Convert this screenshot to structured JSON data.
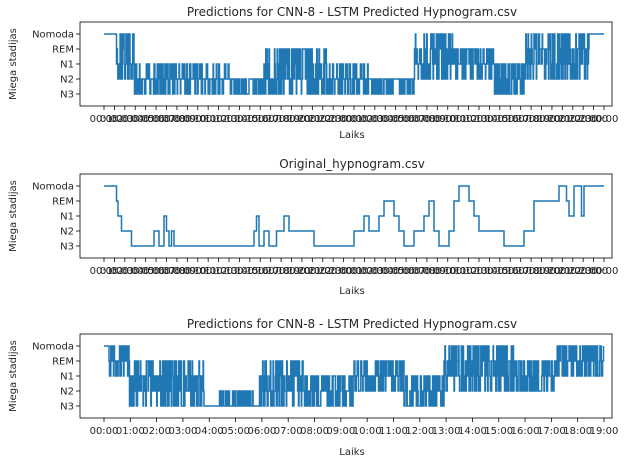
{
  "chart_data": [
    {
      "type": "line",
      "title": "Predictions for CNN-8 - LSTM Predicted Hypnogram.csv",
      "xlabel": "Laiks",
      "ylabel": "Miega stadijas",
      "y_categories": [
        "N3",
        "N2",
        "N1",
        "REM",
        "Nomoda"
      ],
      "x_ticks": [
        "00:00",
        "01:00",
        "02:00",
        "03:00",
        "04:00",
        "05:00",
        "06:00",
        "07:00",
        "08:00",
        "09:00",
        "10:00",
        "11:00",
        "12:00",
        "13:00",
        "14:00",
        "15:00",
        "16:00",
        "17:00",
        "18:00",
        "19:00",
        "20:00",
        "21:00",
        "22:00",
        "23:00",
        "00:00",
        "01:00",
        "02:00",
        "03:00",
        "04:00",
        "05:00",
        "06:00",
        "07:00",
        "08:00",
        "09:00",
        "10:00",
        "11:00",
        "12:00",
        "13:00",
        "14:00",
        "15:00",
        "16:00",
        "17:00",
        "18:00",
        "19:00",
        "20:00",
        "21:00",
        "22:00",
        "23:00",
        "00:00"
      ],
      "x_ticks_overlap": true,
      "grid": false,
      "color": "#1f77b4",
      "segments": [
        {
          "from": 0,
          "to": 0.025,
          "stage": "Nomoda"
        },
        {
          "from": 0.025,
          "to": 0.06,
          "noisy": [
            "Nomoda",
            "REM",
            "N1",
            "N2"
          ]
        },
        {
          "from": 0.06,
          "to": 0.25,
          "noisy": [
            "N2",
            "N3",
            "N2",
            "N1"
          ]
        },
        {
          "from": 0.25,
          "to": 0.32,
          "noisy": [
            "N3",
            "N2"
          ]
        },
        {
          "from": 0.32,
          "to": 0.45,
          "noisy": [
            "REM",
            "N1",
            "N2",
            "N3"
          ]
        },
        {
          "from": 0.45,
          "to": 0.53,
          "noisy": [
            "N2",
            "N3",
            "N1"
          ]
        },
        {
          "from": 0.53,
          "to": 0.62,
          "noisy": [
            "N2",
            "N3"
          ]
        },
        {
          "from": 0.62,
          "to": 0.7,
          "noisy": [
            "REM",
            "N1",
            "N2",
            "Nomoda"
          ]
        },
        {
          "from": 0.7,
          "to": 0.78,
          "noisy": [
            "N1",
            "N2",
            "REM"
          ]
        },
        {
          "from": 0.78,
          "to": 0.84,
          "noisy": [
            "N2",
            "N3",
            "N1"
          ]
        },
        {
          "from": 0.84,
          "to": 0.97,
          "noisy": [
            "REM",
            "N1",
            "Nomoda",
            "N2"
          ]
        },
        {
          "from": 0.97,
          "to": 1.0,
          "stage": "Nomoda"
        }
      ]
    },
    {
      "type": "line",
      "title": "Original_hypnogram.csv",
      "xlabel": "Laiks",
      "ylabel": "Miega stadijas",
      "y_categories": [
        "N3",
        "N2",
        "N1",
        "REM",
        "Nomoda"
      ],
      "x_ticks": [
        "00:00",
        "01:00",
        "02:00",
        "03:00",
        "04:00",
        "05:00",
        "06:00",
        "07:00",
        "08:00",
        "09:00",
        "10:00",
        "11:00",
        "12:00",
        "13:00",
        "14:00",
        "15:00",
        "16:00",
        "17:00",
        "18:00",
        "19:00",
        "20:00",
        "21:00",
        "22:00",
        "23:00",
        "00:00",
        "01:00",
        "02:00",
        "03:00",
        "04:00",
        "05:00",
        "06:00",
        "07:00",
        "08:00",
        "09:00",
        "10:00",
        "11:00",
        "12:00",
        "13:00",
        "14:00",
        "15:00",
        "16:00",
        "17:00",
        "18:00",
        "19:00",
        "20:00",
        "21:00",
        "22:00",
        "23:00",
        "00:00"
      ],
      "x_ticks_overlap": true,
      "grid": false,
      "color": "#1f77b4",
      "steps": [
        [
          0.0,
          "Nomoda"
        ],
        [
          0.025,
          "REM"
        ],
        [
          0.028,
          "N1"
        ],
        [
          0.035,
          "N2"
        ],
        [
          0.045,
          "N2"
        ],
        [
          0.055,
          "N3"
        ],
        [
          0.1,
          "N2"
        ],
        [
          0.11,
          "N3"
        ],
        [
          0.12,
          "N1"
        ],
        [
          0.125,
          "N2"
        ],
        [
          0.13,
          "N3"
        ],
        [
          0.135,
          "N2"
        ],
        [
          0.14,
          "N3"
        ],
        [
          0.3,
          "N2"
        ],
        [
          0.305,
          "N1"
        ],
        [
          0.31,
          "N3"
        ],
        [
          0.32,
          "N2"
        ],
        [
          0.33,
          "N3"
        ],
        [
          0.345,
          "N2"
        ],
        [
          0.36,
          "N1"
        ],
        [
          0.37,
          "N2"
        ],
        [
          0.4,
          "N2"
        ],
        [
          0.42,
          "N3"
        ],
        [
          0.5,
          "N2"
        ],
        [
          0.52,
          "N1"
        ],
        [
          0.53,
          "N2"
        ],
        [
          0.55,
          "N1"
        ],
        [
          0.56,
          "REM"
        ],
        [
          0.58,
          "N1"
        ],
        [
          0.59,
          "N2"
        ],
        [
          0.6,
          "N3"
        ],
        [
          0.62,
          "N2"
        ],
        [
          0.64,
          "N1"
        ],
        [
          0.65,
          "REM"
        ],
        [
          0.66,
          "N2"
        ],
        [
          0.67,
          "N3"
        ],
        [
          0.69,
          "N2"
        ],
        [
          0.7,
          "REM"
        ],
        [
          0.71,
          "Nomoda"
        ],
        [
          0.73,
          "REM"
        ],
        [
          0.74,
          "N1"
        ],
        [
          0.75,
          "N2"
        ],
        [
          0.8,
          "N3"
        ],
        [
          0.84,
          "N2"
        ],
        [
          0.86,
          "REM"
        ],
        [
          0.9,
          "REM"
        ],
        [
          0.91,
          "Nomoda"
        ],
        [
          0.925,
          "REM"
        ],
        [
          0.93,
          "N1"
        ],
        [
          0.94,
          "Nomoda"
        ],
        [
          0.955,
          "N1"
        ],
        [
          0.96,
          "Nomoda"
        ],
        [
          1.0,
          "Nomoda"
        ]
      ]
    },
    {
      "type": "line",
      "title": "Predictions for CNN-8 - LSTM Predicted Hypnogram.csv",
      "xlabel": "Laiks",
      "ylabel": "Miega stadijas",
      "y_categories": [
        "N3",
        "N2",
        "N1",
        "REM",
        "Nomoda"
      ],
      "x_ticks": [
        "00:00",
        "01:00",
        "02:00",
        "03:00",
        "04:00",
        "05:00",
        "06:00",
        "07:00",
        "08:00",
        "09:00",
        "10:00",
        "11:00",
        "12:00",
        "13:00",
        "14:00",
        "15:00",
        "16:00",
        "17:00",
        "18:00",
        "19:00"
      ],
      "x_ticks_overlap": false,
      "grid": false,
      "color": "#1f77b4",
      "segments": [
        {
          "from": 0,
          "to": 0.01,
          "stage": "Nomoda"
        },
        {
          "from": 0.01,
          "to": 0.05,
          "noisy": [
            "Nomoda",
            "REM",
            "N1"
          ]
        },
        {
          "from": 0.05,
          "to": 0.2,
          "noisy": [
            "REM",
            "N1",
            "N2",
            "N3"
          ]
        },
        {
          "from": 0.2,
          "to": 0.23,
          "stage": "N3"
        },
        {
          "from": 0.23,
          "to": 0.31,
          "noisy": [
            "N2",
            "N3"
          ]
        },
        {
          "from": 0.31,
          "to": 0.4,
          "noisy": [
            "REM",
            "N1",
            "N2",
            "N3"
          ]
        },
        {
          "from": 0.4,
          "to": 0.5,
          "noisy": [
            "N2",
            "N3",
            "N1"
          ]
        },
        {
          "from": 0.5,
          "to": 0.6,
          "noisy": [
            "REM",
            "N1",
            "N2"
          ]
        },
        {
          "from": 0.6,
          "to": 0.68,
          "noisy": [
            "N2",
            "N3",
            "N1"
          ]
        },
        {
          "from": 0.68,
          "to": 0.82,
          "noisy": [
            "REM",
            "N1",
            "Nomoda",
            "N2"
          ]
        },
        {
          "from": 0.82,
          "to": 0.9,
          "noisy": [
            "N2",
            "N1",
            "REM"
          ]
        },
        {
          "from": 0.9,
          "to": 1.0,
          "noisy": [
            "Nomoda",
            "REM",
            "N1"
          ]
        }
      ]
    }
  ]
}
